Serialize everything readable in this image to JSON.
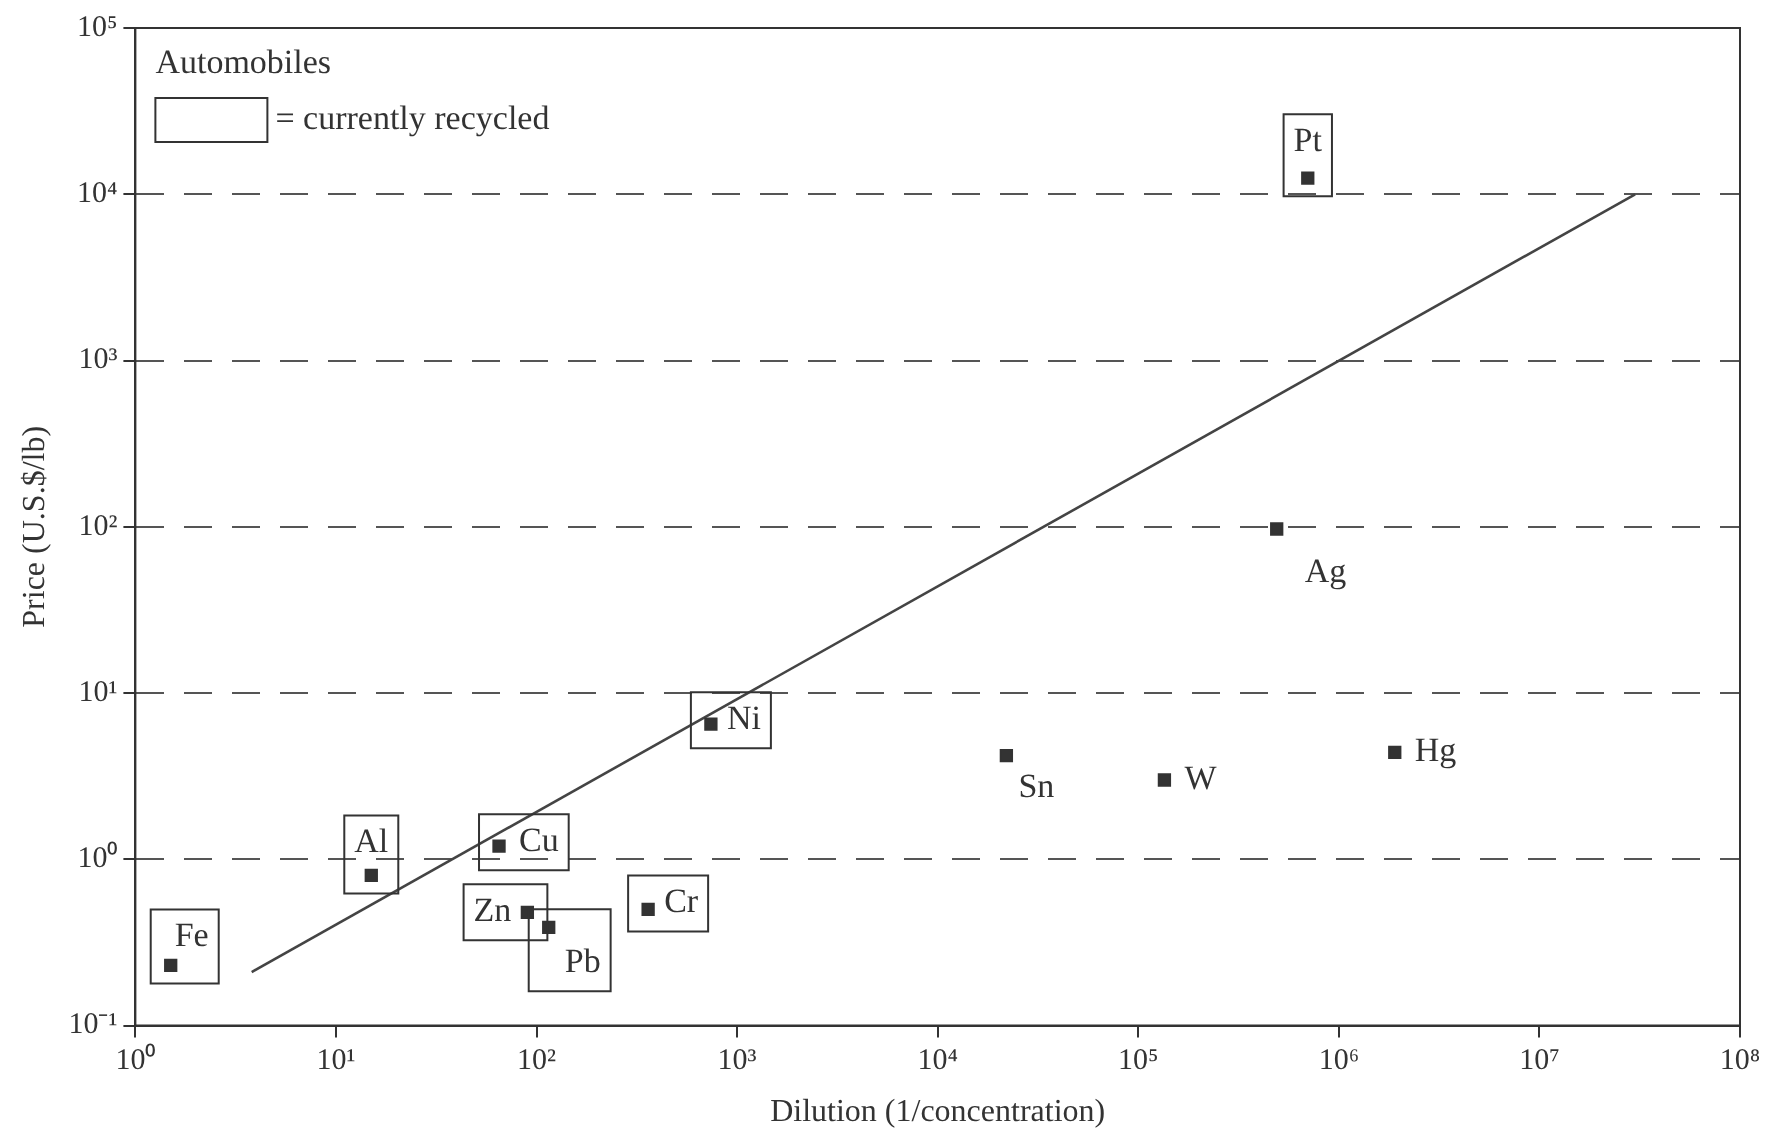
{
  "chart_data": {
    "type": "scatter",
    "xlabel": "Dilution (1/concentration)",
    "ylabel": "Price (U.S.$/lb)",
    "legend_title": "Automobiles",
    "legend": "top left",
    "log": "xy",
    "grid": "y",
    "marker": "square",
    "xlim": [
      1,
      100000000
    ],
    "ylim": [
      0.1,
      100000
    ],
    "xticks": [
      {
        "value": 1,
        "label": "10⁰"
      },
      {
        "value": 10,
        "label": "10¹"
      },
      {
        "value": 100,
        "label": "10²"
      },
      {
        "value": 1000,
        "label": "10³"
      },
      {
        "value": 10000,
        "label": "10⁴"
      },
      {
        "value": 100000,
        "label": "10⁵"
      },
      {
        "value": 1000000,
        "label": "10⁶"
      },
      {
        "value": 10000000,
        "label": "10⁷"
      },
      {
        "value": 100000000,
        "label": "10⁸"
      }
    ],
    "yticks": [
      {
        "value": 0.1,
        "label": "10⁻¹"
      },
      {
        "value": 1,
        "label": "10⁰"
      },
      {
        "value": 10,
        "label": "10¹"
      },
      {
        "value": 100,
        "label": "10²"
      },
      {
        "value": 1000,
        "label": "10³"
      },
      {
        "value": 10000,
        "label": "10⁴"
      },
      {
        "value": 100000,
        "label": "10⁵"
      }
    ],
    "series": [
      {
        "name": "= currently recycled",
        "color": "#333333",
        "x": [
          1.5,
          15,
          65,
          90,
          115,
          360,
          740,
          700000
        ],
        "values": [
          0.23,
          0.8,
          1.2,
          0.48,
          0.39,
          0.5,
          6.5,
          12500
        ],
        "value_labels": [
          "Fe",
          "Al",
          "Cu",
          "Zn",
          "Pb",
          "Cr",
          "Ni",
          "Pt"
        ]
      },
      {
        "color": "#333333",
        "x": [
          22000,
          135000,
          490000,
          1900000
        ],
        "values": [
          4.2,
          3,
          97,
          4.4
        ],
        "value_labels": [
          "Sn",
          "W",
          "Ag",
          "Hg"
        ]
      },
      {
        "type": "line",
        "marker": "none",
        "line_style": "solid",
        "color": "#444444",
        "x": [
          3.8,
          30000000
        ],
        "values": [
          0.21,
          10000
        ]
      }
    ]
  }
}
